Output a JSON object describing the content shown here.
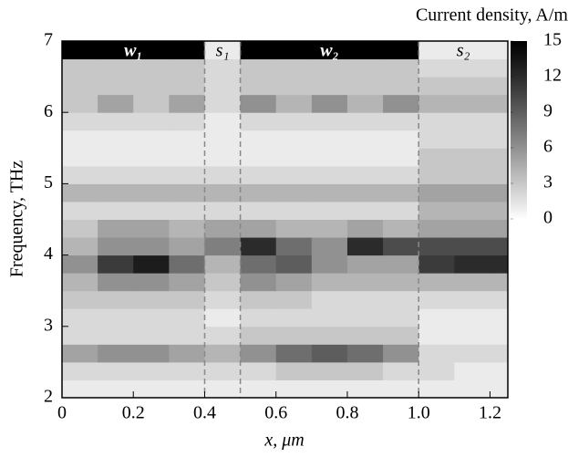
{
  "chart_data": {
    "type": "heatmap",
    "xlabel": "x, μm",
    "ylabel": "Frequency, THz",
    "colorbar_label": "Current density, A/m",
    "x_edges": [
      0,
      0.1,
      0.2,
      0.3,
      0.4,
      0.5,
      0.6,
      0.7,
      0.8,
      0.9,
      1.0,
      1.1,
      1.2,
      1.25
    ],
    "y_edges": [
      2,
      2.25,
      2.5,
      2.75,
      3,
      3.25,
      3.5,
      3.75,
      4,
      4.25,
      4.5,
      4.75,
      5,
      5.25,
      5.5,
      5.75,
      6,
      6.25,
      6.5,
      6.75,
      7
    ],
    "z": [
      [
        1,
        1,
        1,
        1,
        1,
        1,
        1,
        1,
        1,
        1,
        1,
        1,
        1
      ],
      [
        2,
        2,
        2,
        2,
        2,
        2,
        3,
        3,
        3,
        2,
        2,
        1,
        1
      ],
      [
        5,
        6,
        6,
        5,
        4,
        6,
        8,
        9,
        8,
        6,
        2,
        2,
        2
      ],
      [
        2,
        2,
        2,
        2,
        2,
        3,
        3,
        3,
        3,
        3,
        1,
        1,
        1
      ],
      [
        2,
        2,
        2,
        2,
        1,
        2,
        2,
        2,
        2,
        2,
        1,
        1,
        1
      ],
      [
        3,
        3,
        3,
        3,
        2,
        3,
        3,
        2,
        2,
        2,
        2,
        2,
        2
      ],
      [
        4,
        6,
        6,
        5,
        3,
        6,
        5,
        4,
        4,
        4,
        4,
        4,
        4
      ],
      [
        6,
        11,
        13,
        8,
        4,
        8,
        9,
        6,
        5,
        5,
        11,
        12,
        12
      ],
      [
        4,
        6,
        6,
        5,
        7,
        12,
        8,
        6,
        12,
        10,
        10,
        10,
        10
      ],
      [
        3,
        5,
        5,
        4,
        5,
        5,
        4,
        4,
        5,
        4,
        5,
        5,
        5
      ],
      [
        2,
        2,
        2,
        2,
        2,
        2,
        2,
        2,
        2,
        2,
        4,
        4,
        4
      ],
      [
        4,
        4,
        4,
        4,
        4,
        4,
        4,
        4,
        4,
        4,
        5,
        5,
        5
      ],
      [
        2,
        2,
        2,
        2,
        2,
        2,
        2,
        2,
        2,
        2,
        3,
        3,
        3
      ],
      [
        1,
        1,
        1,
        1,
        1,
        1,
        1,
        1,
        1,
        1,
        3,
        3,
        3
      ],
      [
        1,
        1,
        1,
        1,
        1,
        1,
        1,
        1,
        1,
        1,
        2,
        2,
        2
      ],
      [
        2,
        2,
        2,
        2,
        1,
        2,
        2,
        2,
        2,
        2,
        2,
        2,
        2
      ],
      [
        3,
        5,
        3,
        5,
        2,
        6,
        4,
        6,
        4,
        6,
        4,
        4,
        4
      ],
      [
        3,
        3,
        3,
        3,
        2,
        3,
        3,
        3,
        3,
        3,
        3,
        3,
        3
      ],
      [
        3,
        3,
        3,
        3,
        2,
        3,
        3,
        3,
        3,
        3,
        2,
        2,
        2
      ],
      [
        15,
        15,
        15,
        15,
        1,
        15,
        15,
        15,
        15,
        15,
        1,
        1,
        1
      ]
    ],
    "xlim": [
      0,
      1.25
    ],
    "ylim": [
      2,
      7
    ],
    "xticks": [
      0,
      0.2,
      0.4,
      0.6,
      0.8,
      {
        "value": 1.0,
        "label": "1.0"
      },
      1.2
    ],
    "yticks": [
      2,
      3,
      4,
      5,
      6,
      7
    ],
    "zlim": [
      0,
      15
    ],
    "zticks": [
      0,
      3,
      6,
      9,
      12,
      15
    ],
    "regions": [
      {
        "label": "w₁",
        "from": 0,
        "to": 0.4
      },
      {
        "label": "s₁",
        "from": 0.4,
        "to": 0.5
      },
      {
        "label": "w₂",
        "from": 0.5,
        "to": 1.0
      },
      {
        "label": "s₂",
        "from": 1.0,
        "to": 1.25
      }
    ]
  }
}
